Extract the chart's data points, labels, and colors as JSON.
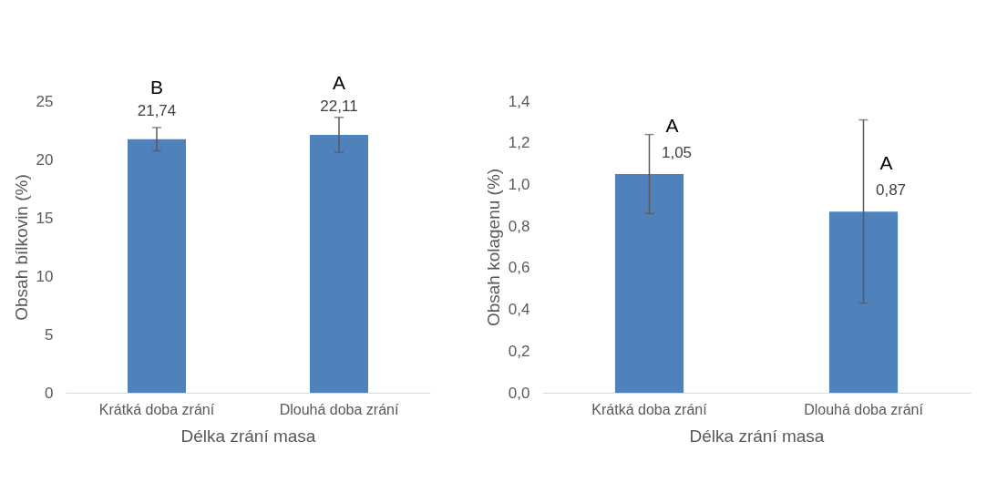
{
  "chart_data": [
    {
      "type": "bar",
      "xlabel": "Délka zrání masa",
      "ylabel": "Obsah bílkovin (%)",
      "categories": [
        "Krátká doba zrání",
        "Dlouhá doba zrání"
      ],
      "values": [
        21.74,
        22.11
      ],
      "value_labels": [
        "21,74",
        "22,11"
      ],
      "errors": [
        1.0,
        1.5
      ],
      "color": "#4f81bd",
      "ylim": [
        0,
        25
      ],
      "yticks": [
        0,
        5,
        10,
        15,
        20,
        25
      ],
      "annotations": [
        "B",
        "A"
      ]
    },
    {
      "type": "bar",
      "xlabel": "Délka zrání masa",
      "ylabel": "Obsah kolagenu (%)",
      "categories": [
        "Krátká doba zrání",
        "Dlouhá doba zrání"
      ],
      "values": [
        1.05,
        0.87
      ],
      "value_labels": [
        "1,05",
        "0,87"
      ],
      "errors": [
        0.19,
        0.44
      ],
      "color": "#4f81bd",
      "ylim": [
        0,
        1.4
      ],
      "yticks": [
        {
          "value": 0,
          "label": "0,0"
        },
        {
          "value": 0.2,
          "label": "0,2"
        },
        {
          "value": 0.4,
          "label": "0,4"
        },
        {
          "value": 0.6,
          "label": "0,6"
        },
        {
          "value": 0.8,
          "label": "0,8"
        },
        {
          "value": 1.0,
          "label": "1,0"
        },
        {
          "value": 1.2,
          "label": "1,2"
        },
        {
          "value": 1.4,
          "label": "1,4"
        }
      ],
      "annotations": [
        "A",
        "A"
      ]
    }
  ]
}
